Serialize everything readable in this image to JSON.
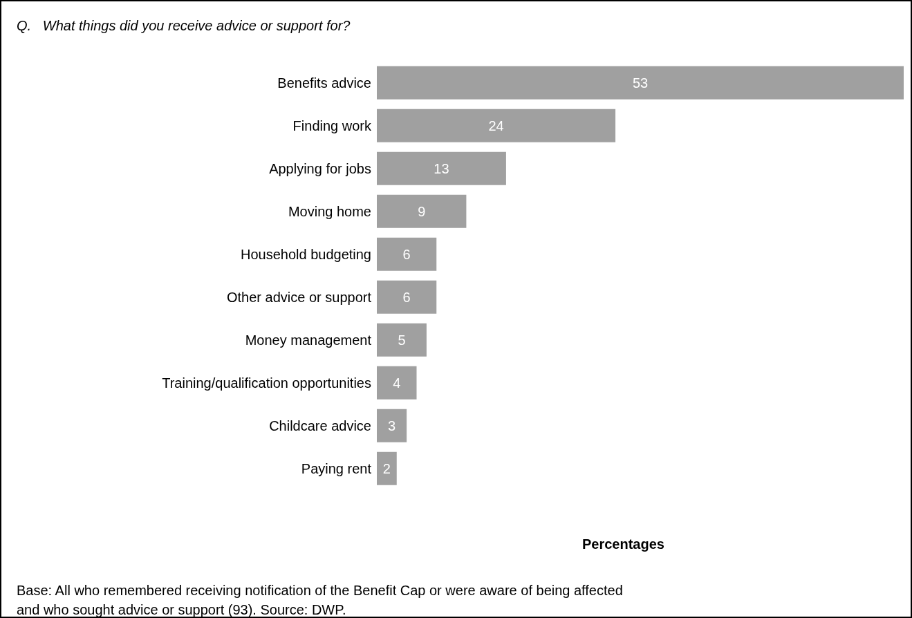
{
  "chart_data": {
    "type": "bar",
    "orientation": "horizontal",
    "title": "Q.   What things did you receive advice or support for?",
    "xlabel": "Percentages",
    "categories": [
      "Benefits advice",
      "Finding work",
      "Applying for jobs",
      "Moving home",
      "Household budgeting",
      "Other advice or support",
      "Money management",
      "Training/qualification opportunities",
      "Childcare advice",
      "Paying rent"
    ],
    "values": [
      53,
      24,
      13,
      9,
      6,
      6,
      5,
      4,
      3,
      2
    ],
    "color": "#a0a0a0",
    "xlim": [
      0,
      53
    ],
    "data_labels": true,
    "tick_labels": "y",
    "grid": false,
    "legend": false,
    "annotations": [
      "Base: All who remembered receiving notification of the Benefit Cap or were aware of being affected and who sought advice or support (93). Source: DWP."
    ]
  }
}
